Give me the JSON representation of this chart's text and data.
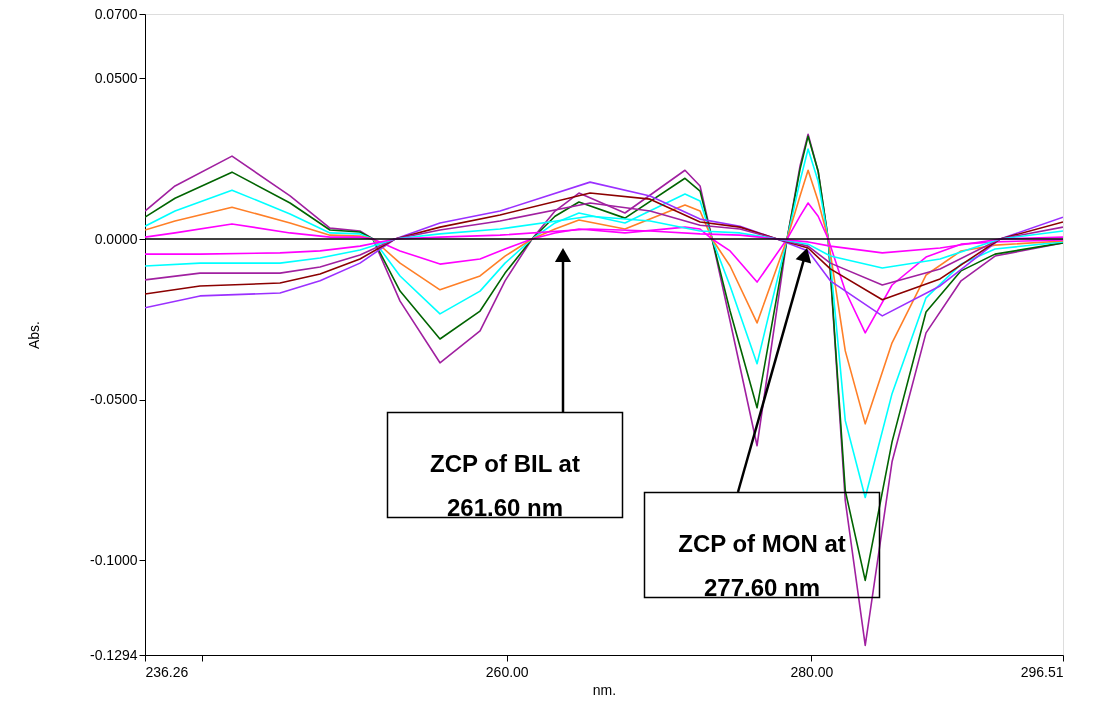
{
  "chart_data": {
    "type": "line",
    "xlabel": "nm.",
    "ylabel": "Abs.",
    "xlim": [
      236.26,
      296.51
    ],
    "ylim": [
      -0.1294,
      0.07
    ],
    "xticks": [
      236.26,
      {
        "value": 240,
        "label": null
      },
      {
        "value": 260,
        "label": "260.00"
      },
      {
        "value": 280,
        "label": "280.00"
      },
      296.51
    ],
    "yticks": [
      {
        "value": -0.1294,
        "label": "-0.1294"
      },
      {
        "value": -0.1,
        "label": "-0.1000"
      },
      {
        "value": -0.05,
        "label": "-0.0500"
      },
      {
        "value": 0,
        "label": "0.0000"
      },
      {
        "value": 0.05,
        "label": "0.0500"
      },
      {
        "value": 0.07,
        "label": "0.0700"
      }
    ],
    "grid": false,
    "line_style": "solid",
    "ref_lines": [
      {
        "axis": "y",
        "value": 0,
        "label": null,
        "color": "#000000"
      }
    ],
    "annotations": [
      "ZCP of BIL at 261.60 nm",
      "ZCP of MON at 277.60 nm"
    ],
    "series": [
      {
        "color": "#a020a0",
        "x": [
          236.26,
          238.23,
          241.97,
          245.78,
          248.4,
          250.37,
          251.22,
          253.0,
          255.62,
          258.25,
          259.89,
          261.66,
          263.17,
          264.74,
          267.76,
          271.7,
          272.69,
          273.48,
          274.66,
          276.43,
          278.4,
          279.25,
          279.78,
          280.44,
          281.1,
          282.22,
          283.53,
          285.29,
          287.52,
          289.82,
          292.05,
          296.51
        ],
        "values": [
          0.0087,
          0.0165,
          0.0258,
          0.0134,
          0.0034,
          0.0025,
          0,
          -0.0193,
          -0.0385,
          -0.0286,
          -0.013,
          0,
          0.0087,
          0.0143,
          0.0081,
          0.0214,
          0.0165,
          0,
          -0.0255,
          -0.0643,
          0,
          0.0227,
          0.0326,
          0.0211,
          0,
          -0.0814,
          -0.1264,
          -0.0693,
          -0.0292,
          -0.013,
          -0.0053,
          -0.0012
        ]
      },
      {
        "color": "#006400",
        "x": [
          236.26,
          238.23,
          241.97,
          245.78,
          248.4,
          250.37,
          251.22,
          253.0,
          255.62,
          258.25,
          259.89,
          261.66,
          263.17,
          264.74,
          267.76,
          271.7,
          272.69,
          273.48,
          274.66,
          276.43,
          278.4,
          279.25,
          279.78,
          280.44,
          281.1,
          282.22,
          283.53,
          285.29,
          287.52,
          289.82,
          292.05,
          296.51
        ],
        "values": [
          0.0068,
          0.0127,
          0.0208,
          0.0112,
          0.0028,
          0.0022,
          0,
          -0.0162,
          -0.0311,
          -0.0224,
          -0.0106,
          0,
          0.0071,
          0.0115,
          0.0065,
          0.0189,
          0.0149,
          0,
          -0.0224,
          -0.0525,
          0,
          0.0217,
          0.032,
          0.0211,
          0,
          -0.0783,
          -0.1062,
          -0.0631,
          -0.0227,
          -0.0099,
          -0.0047,
          -0.0012
        ]
      },
      {
        "color": "#00ffff",
        "x": [
          236.26,
          238.23,
          241.97,
          245.78,
          248.4,
          250.37,
          251.22,
          253.0,
          255.62,
          258.25,
          259.89,
          261.66,
          263.17,
          264.74,
          267.76,
          271.7,
          272.69,
          273.48,
          274.66,
          276.43,
          278.4,
          279.25,
          279.78,
          280.44,
          281.1,
          282.22,
          283.53,
          285.29,
          287.52,
          289.82,
          292.05,
          296.51
        ],
        "values": [
          0.004,
          0.0087,
          0.0152,
          0.0078,
          0.0019,
          0.0016,
          0,
          -0.0115,
          -0.0233,
          -0.0162,
          -0.0075,
          0,
          0.005,
          0.0081,
          0.005,
          0.014,
          0.0118,
          0,
          -0.0146,
          -0.0388,
          0,
          0.018,
          0.028,
          0.018,
          0,
          -0.0565,
          -0.0804,
          -0.0481,
          -0.0183,
          -0.0078,
          -0.0031,
          -0.0009
        ]
      },
      {
        "color": "#ff7f27",
        "x": [
          236.26,
          238.23,
          241.97,
          245.78,
          248.4,
          250.37,
          251.22,
          253.0,
          255.62,
          258.25,
          259.89,
          261.66,
          263.17,
          264.74,
          267.76,
          271.7,
          272.69,
          273.48,
          274.66,
          276.43,
          278.4,
          279.25,
          279.78,
          280.44,
          281.1,
          282.22,
          283.53,
          285.29,
          287.52,
          289.82,
          292.05,
          296.51
        ],
        "values": [
          0.0028,
          0.0056,
          0.0099,
          0.005,
          0.0012,
          0.0009,
          0,
          -0.0075,
          -0.0158,
          -0.0115,
          -0.0053,
          0,
          0.0031,
          0.0059,
          0.0031,
          0.0106,
          0.0087,
          0,
          -0.0084,
          -0.0261,
          0,
          0.0134,
          0.0214,
          0.0118,
          0,
          -0.0348,
          -0.0575,
          -0.0323,
          -0.0112,
          -0.0037,
          -0.0019,
          -0.0006
        ]
      },
      {
        "color": "#ff00ff",
        "x": [
          236.26,
          238.23,
          241.97,
          245.78,
          248.4,
          250.37,
          251.22,
          253.0,
          255.62,
          258.25,
          259.89,
          261.66,
          263.17,
          264.74,
          267.76,
          271.7,
          272.69,
          273.48,
          274.66,
          276.43,
          278.4,
          279.25,
          279.78,
          280.44,
          281.1,
          282.22,
          283.53,
          285.29,
          287.52,
          289.82,
          292.05,
          296.51
        ],
        "values": [
          0.0006,
          0.0019,
          0.0047,
          0.0019,
          0.0006,
          0.0006,
          0,
          -0.0037,
          -0.0078,
          -0.0062,
          -0.0031,
          0,
          0.0019,
          0.0031,
          0.0019,
          0.0037,
          0.0031,
          0,
          -0.0037,
          -0.0134,
          0,
          0.0071,
          0.0112,
          0.0071,
          0,
          -0.0161,
          -0.0292,
          -0.0143,
          -0.0056,
          -0.0016,
          -0.0009,
          -0.0003
        ]
      },
      {
        "color": "#9b30ff",
        "x": [
          236.26,
          239.87,
          245.12,
          247.75,
          250.37,
          252.67,
          255.62,
          259.56,
          265.47,
          269.41,
          272.69,
          275.31,
          277.74,
          279.78,
          281.24,
          284.65,
          288.44,
          292.38,
          296.51
        ],
        "values": [
          -0.0214,
          -0.0177,
          -0.0168,
          -0.013,
          -0.0075,
          0,
          0.005,
          0.0087,
          0.0177,
          0.0134,
          0.0062,
          0.004,
          0,
          -0.0037,
          -0.013,
          -0.0239,
          -0.0146,
          0,
          0.0068
        ]
      },
      {
        "color": "#8b0000",
        "x": [
          236.26,
          239.87,
          245.12,
          247.75,
          250.37,
          252.67,
          255.62,
          259.56,
          265.47,
          269.41,
          272.69,
          275.31,
          277.74,
          279.78,
          281.24,
          284.65,
          288.44,
          292.38,
          296.51
        ],
        "values": [
          -0.0171,
          -0.0146,
          -0.0137,
          -0.0109,
          -0.0062,
          0,
          0.0037,
          0.0075,
          0.0143,
          0.0124,
          0.0053,
          0.0037,
          0,
          -0.0028,
          -0.0093,
          -0.0189,
          -0.0124,
          0,
          0.0053
        ]
      },
      {
        "color": "#a020a0",
        "x": [
          236.26,
          239.87,
          245.12,
          247.75,
          250.37,
          252.67,
          255.62,
          259.56,
          265.47,
          269.41,
          272.69,
          275.31,
          277.74,
          279.78,
          281.24,
          284.65,
          288.44,
          292.38,
          296.51
        ],
        "values": [
          -0.0127,
          -0.0106,
          -0.0106,
          -0.0087,
          -0.005,
          0,
          0.0028,
          0.0056,
          0.0112,
          0.0087,
          0.0043,
          0.0031,
          0,
          -0.0022,
          -0.0075,
          -0.0143,
          -0.0093,
          0,
          0.0037
        ]
      },
      {
        "color": "#00ffff",
        "x": [
          236.26,
          239.87,
          245.12,
          247.75,
          250.37,
          252.67,
          255.62,
          259.56,
          265.47,
          269.41,
          272.69,
          275.31,
          277.74,
          279.78,
          281.24,
          284.65,
          288.44,
          292.38,
          296.51
        ],
        "values": [
          -0.0084,
          -0.0075,
          -0.0075,
          -0.0059,
          -0.0034,
          0,
          0.0016,
          0.0031,
          0.0071,
          0.0056,
          0.0025,
          0.0019,
          0,
          -0.0016,
          -0.0053,
          -0.009,
          -0.0062,
          0,
          0.0025
        ]
      },
      {
        "color": "#ff00ff",
        "x": [
          236.26,
          239.87,
          245.12,
          247.75,
          250.37,
          252.67,
          255.62,
          259.56,
          265.47,
          269.41,
          272.69,
          275.31,
          277.74,
          279.78,
          281.24,
          284.65,
          288.44,
          292.38,
          296.51
        ],
        "values": [
          -0.0047,
          -0.0047,
          -0.0043,
          -0.0037,
          -0.0022,
          0,
          0.0006,
          0.0012,
          0.0031,
          0.0025,
          0.0016,
          0.0012,
          0,
          -0.0009,
          -0.0022,
          -0.0043,
          -0.0028,
          0,
          0.0006
        ]
      }
    ]
  }
}
